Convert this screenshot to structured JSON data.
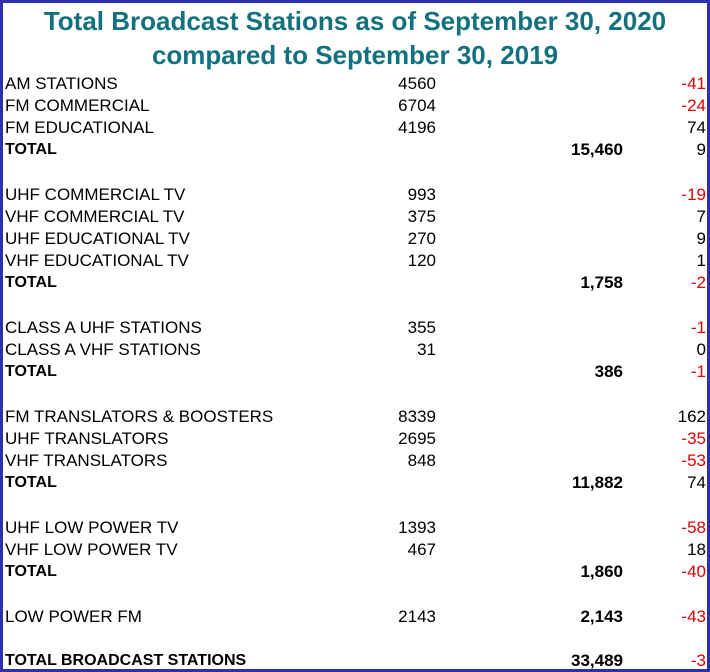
{
  "title_line1": "Total Broadcast Stations as of September 30, 2020",
  "title_line2": "compared to September 30, 2019",
  "rows": [
    {
      "label": "AM STATIONS",
      "count": "4560",
      "total": "",
      "change": "-41"
    },
    {
      "label": "FM COMMERCIAL",
      "count": "6704",
      "total": "",
      "change": "-24"
    },
    {
      "label": "FM EDUCATIONAL",
      "count": "4196",
      "total": "",
      "change": "74"
    },
    {
      "label": "TOTAL",
      "count": "",
      "total": "15,460",
      "change": "9"
    },
    {
      "label": "UHF COMMERCIAL TV",
      "count": "993",
      "total": "",
      "change": "-19"
    },
    {
      "label": "VHF COMMERCIAL TV",
      "count": "375",
      "total": "",
      "change": "7"
    },
    {
      "label": "UHF EDUCATIONAL TV",
      "count": "270",
      "total": "",
      "change": "9"
    },
    {
      "label": "VHF EDUCATIONAL TV",
      "count": "120",
      "total": "",
      "change": "1"
    },
    {
      "label": "TOTAL",
      "count": "",
      "total": "1,758",
      "change": "-2"
    },
    {
      "label": "CLASS A UHF STATIONS",
      "count": "355",
      "total": "",
      "change": "-1"
    },
    {
      "label": "CLASS A VHF STATIONS",
      "count": "31",
      "total": "",
      "change": "0"
    },
    {
      "label": "TOTAL",
      "count": "",
      "total": "386",
      "change": "-1"
    },
    {
      "label": "FM TRANSLATORS & BOOSTERS",
      "count": "8339",
      "total": "",
      "change": "162"
    },
    {
      "label": "UHF TRANSLATORS",
      "count": "2695",
      "total": "",
      "change": "-35"
    },
    {
      "label": "VHF TRANSLATORS",
      "count": "848",
      "total": "",
      "change": "-53"
    },
    {
      "label": "TOTAL",
      "count": "",
      "total": "11,882",
      "change": "74"
    },
    {
      "label": "UHF LOW POWER TV",
      "count": "1393",
      "total": "",
      "change": "-58"
    },
    {
      "label": "VHF LOW POWER TV",
      "count": "467",
      "total": "",
      "change": "18"
    },
    {
      "label": "TOTAL",
      "count": "",
      "total": "1,860",
      "change": "-40"
    },
    {
      "label": "LOW POWER FM",
      "count": "2143",
      "total": "2,143",
      "change": "-43"
    },
    {
      "label": "TOTAL BROADCAST STATIONS",
      "count": "",
      "total": "33,489",
      "change": "-3"
    }
  ],
  "colors": {
    "title": "#13717f",
    "negative": "#e00000",
    "border": "#2f2fae"
  }
}
